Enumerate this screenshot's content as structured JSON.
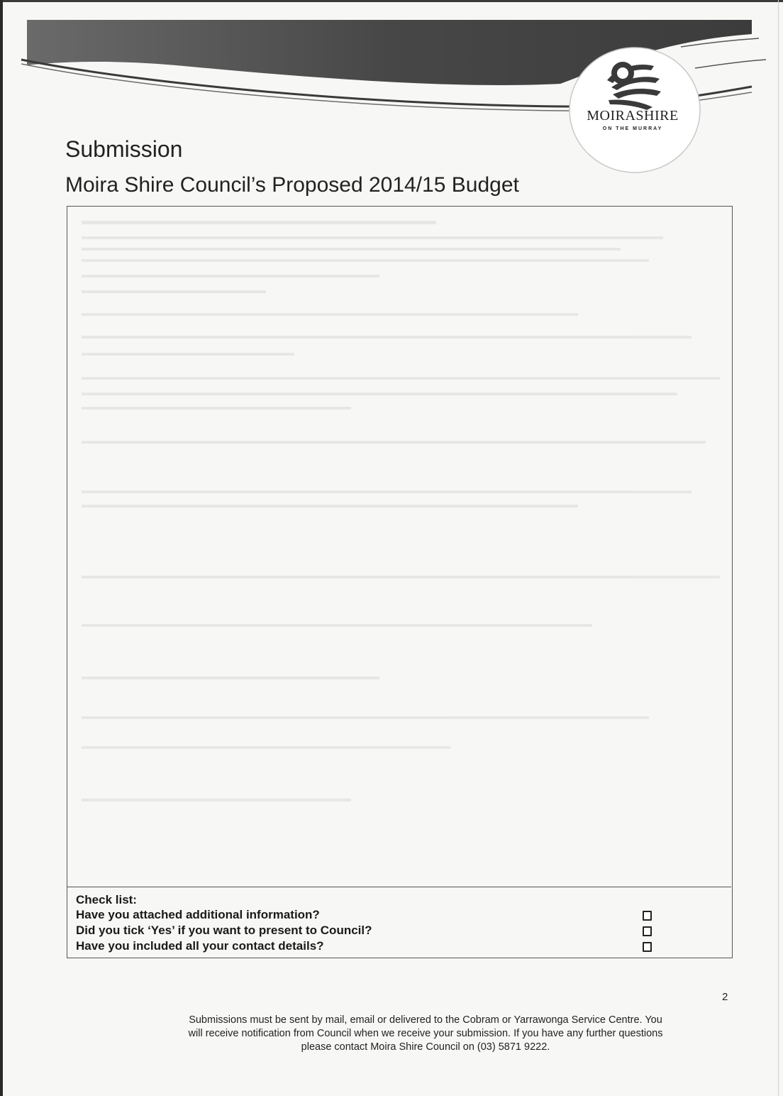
{
  "header": {
    "logo_name": "MOIRASHIRE",
    "logo_tagline": "ON THE MURRAY"
  },
  "title": "Submission",
  "subtitle": "Moira Shire Council’s Proposed 2014/15 Budget",
  "check_list": {
    "heading": "Check list:",
    "items": [
      {
        "label": "Have you attached additional information?",
        "checked": false
      },
      {
        "label": "Did you tick ‘Yes’ if you want to present to Council?",
        "checked": false
      },
      {
        "label": "Have you included all your contact details?",
        "checked": false
      }
    ]
  },
  "page_number": "2",
  "footer": {
    "line1": "Submissions must be sent by mail, email or delivered to the Cobram or Yarrawonga Service Centre. You",
    "line2": "will receive notification from Council when we receive your submission. If you have any further questions",
    "line3": "please contact Moira Shire Council on (03) 5871 9222."
  },
  "colors": {
    "banner": "#4a4a4a",
    "paper": "#f7f7f5",
    "ink": "#1e1e1e"
  }
}
